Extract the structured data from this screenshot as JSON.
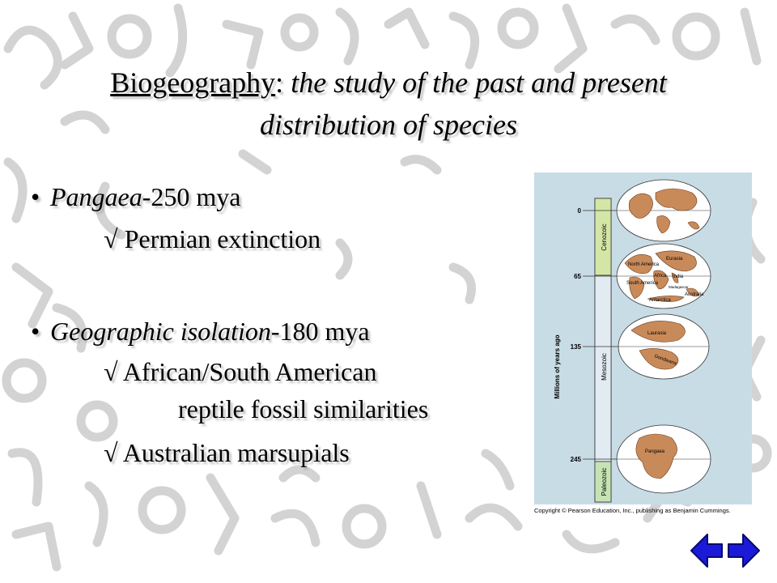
{
  "slide": {
    "title_term": "Biogeography",
    "title_colon": ":",
    "title_rest": " the study of the past and present distribution of species",
    "bullets": [
      {
        "lead": "Pangaea",
        "tail": "-250 mya",
        "subs": [
          "√ Permian extinction"
        ]
      },
      {
        "lead": "Geographic isolation",
        "tail": "-180 mya",
        "subs": [
          "√ African/South American",
          "reptile fossil similarities",
          "√ Australian marsupials"
        ]
      }
    ]
  },
  "figure": {
    "axis_title": "Millions of years ago",
    "ticks": [
      "0",
      "65",
      "135",
      "245"
    ],
    "eras": [
      "Cenozoic",
      "Mesozoic",
      "Paleozoic"
    ],
    "globe_labels": {
      "g2": [
        "North America",
        "Eurasia",
        "Africa",
        "India",
        "South America",
        "Madagascar",
        "Antarctica",
        "Australia"
      ],
      "g3": [
        "Laurasia",
        "Gondwana"
      ],
      "g4": [
        "Pangaea"
      ]
    },
    "copyright": "Copyright © Pearson Education, Inc., publishing as Benjamin Cummings."
  },
  "nav": {
    "back_icon": "back-arrow-icon",
    "forward_icon": "forward-arrow-icon",
    "color": "#1a1ad8"
  }
}
